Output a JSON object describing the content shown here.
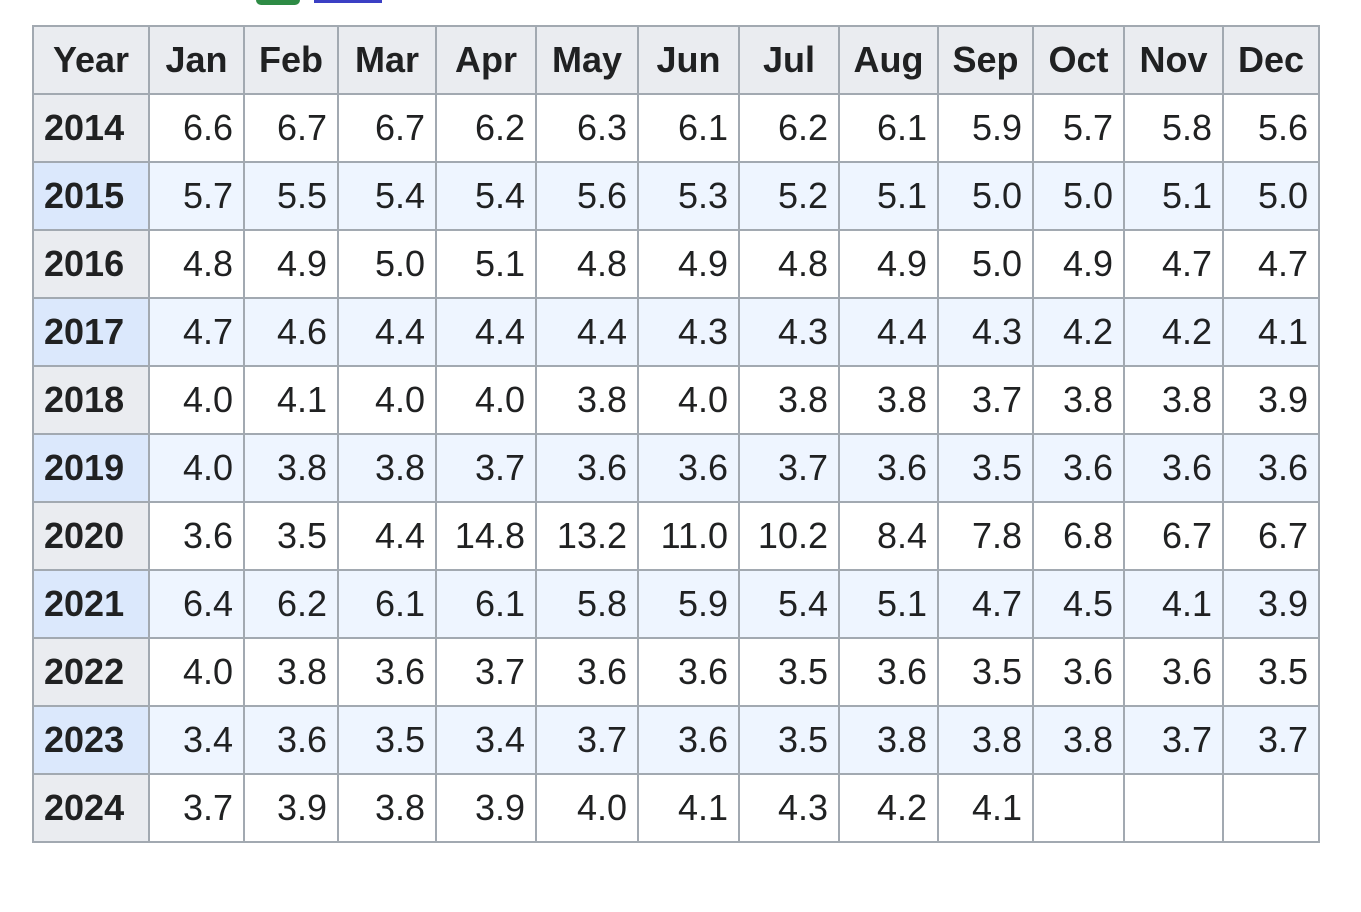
{
  "table": {
    "header": [
      "Year",
      "Jan",
      "Feb",
      "Mar",
      "Apr",
      "May",
      "Jun",
      "Jul",
      "Aug",
      "Sep",
      "Oct",
      "Nov",
      "Dec"
    ],
    "rows": [
      [
        "2014",
        "6.6",
        "6.7",
        "6.7",
        "6.2",
        "6.3",
        "6.1",
        "6.2",
        "6.1",
        "5.9",
        "5.7",
        "5.8",
        "5.6"
      ],
      [
        "2015",
        "5.7",
        "5.5",
        "5.4",
        "5.4",
        "5.6",
        "5.3",
        "5.2",
        "5.1",
        "5.0",
        "5.0",
        "5.1",
        "5.0"
      ],
      [
        "2016",
        "4.8",
        "4.9",
        "5.0",
        "5.1",
        "4.8",
        "4.9",
        "4.8",
        "4.9",
        "5.0",
        "4.9",
        "4.7",
        "4.7"
      ],
      [
        "2017",
        "4.7",
        "4.6",
        "4.4",
        "4.4",
        "4.4",
        "4.3",
        "4.3",
        "4.4",
        "4.3",
        "4.2",
        "4.2",
        "4.1"
      ],
      [
        "2018",
        "4.0",
        "4.1",
        "4.0",
        "4.0",
        "3.8",
        "4.0",
        "3.8",
        "3.8",
        "3.7",
        "3.8",
        "3.8",
        "3.9"
      ],
      [
        "2019",
        "4.0",
        "3.8",
        "3.8",
        "3.7",
        "3.6",
        "3.6",
        "3.7",
        "3.6",
        "3.5",
        "3.6",
        "3.6",
        "3.6"
      ],
      [
        "2020",
        "3.6",
        "3.5",
        "4.4",
        "14.8",
        "13.2",
        "11.0",
        "10.2",
        "8.4",
        "7.8",
        "6.8",
        "6.7",
        "6.7"
      ],
      [
        "2021",
        "6.4",
        "6.2",
        "6.1",
        "6.1",
        "5.8",
        "5.9",
        "5.4",
        "5.1",
        "4.7",
        "4.5",
        "4.1",
        "3.9"
      ],
      [
        "2022",
        "4.0",
        "3.8",
        "3.6",
        "3.7",
        "3.6",
        "3.6",
        "3.5",
        "3.6",
        "3.5",
        "3.6",
        "3.6",
        "3.5"
      ],
      [
        "2023",
        "3.4",
        "3.6",
        "3.5",
        "3.4",
        "3.7",
        "3.6",
        "3.5",
        "3.8",
        "3.8",
        "3.8",
        "3.7",
        "3.7"
      ],
      [
        "2024",
        "3.7",
        "3.9",
        "3.8",
        "3.9",
        "4.0",
        "4.1",
        "4.3",
        "4.2",
        "4.1"
      ]
    ]
  }
}
